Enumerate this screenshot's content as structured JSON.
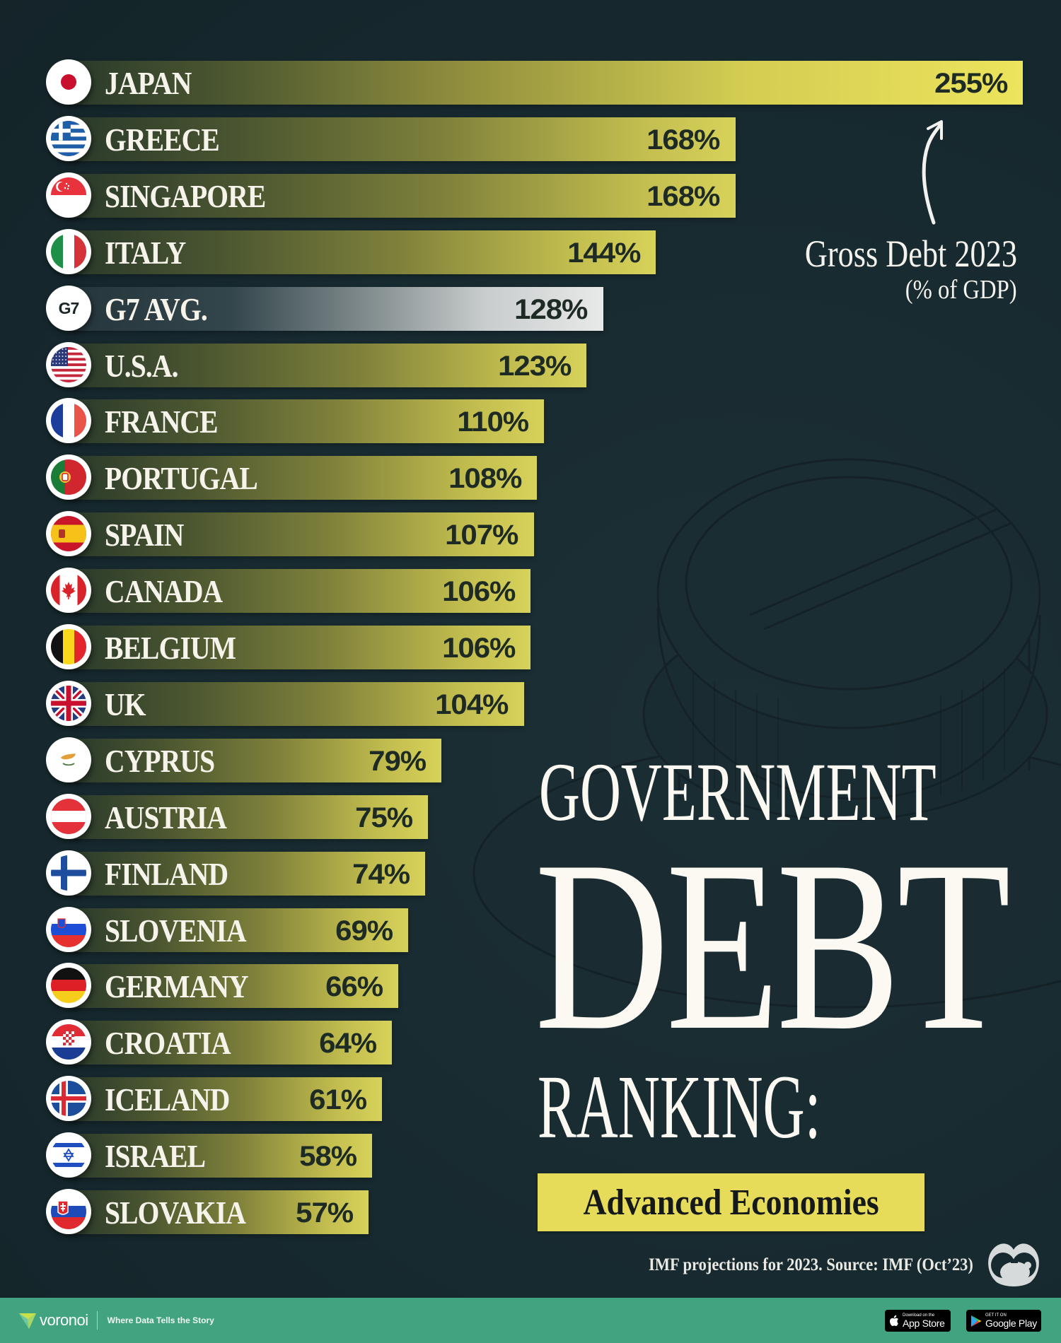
{
  "title": {
    "line1": "GOVERNMENT",
    "line2": "DEBT",
    "line3": "RANKING:",
    "subtitle": "Advanced Economies"
  },
  "annotation": {
    "line1": "Gross Debt 2023",
    "line2": "(% of GDP)"
  },
  "source": "IMF projections for 2023. Source: IMF (Oct’23)",
  "footer": {
    "brand": "voronoi",
    "tagline": "Where Data Tells the Story",
    "app_store_small": "Download on the",
    "app_store_big": "App Store",
    "google_play_small": "GET IT ON",
    "google_play_big": "Google Play"
  },
  "colors": {
    "background": "#172a30",
    "bar_yellow": "#d7d25a",
    "bar_top_yellow": "#ede45c",
    "avg_bar_gray": "#e8e9e9",
    "subtitle_bg": "#e6dc5a",
    "footer_green": "#42a380"
  },
  "rows": [
    {
      "country": "JAPAN",
      "value": "255%",
      "flag": "japan-flag-icon"
    },
    {
      "country": "GREECE",
      "value": "168%",
      "flag": "greece-flag-icon"
    },
    {
      "country": "SINGAPORE",
      "value": "168%",
      "flag": "singapore-flag-icon"
    },
    {
      "country": "ITALY",
      "value": "144%",
      "flag": "italy-flag-icon"
    },
    {
      "country": "G7 AVG.",
      "value": "128%",
      "flag": "g7-icon"
    },
    {
      "country": "U.S.A.",
      "value": "123%",
      "flag": "usa-flag-icon"
    },
    {
      "country": "FRANCE",
      "value": "110%",
      "flag": "france-flag-icon"
    },
    {
      "country": "PORTUGAL",
      "value": "108%",
      "flag": "portugal-flag-icon"
    },
    {
      "country": "SPAIN",
      "value": "107%",
      "flag": "spain-flag-icon"
    },
    {
      "country": "CANADA",
      "value": "106%",
      "flag": "canada-flag-icon"
    },
    {
      "country": "BELGIUM",
      "value": "106%",
      "flag": "belgium-flag-icon"
    },
    {
      "country": "UK",
      "value": "104%",
      "flag": "uk-flag-icon"
    },
    {
      "country": "CYPRUS",
      "value": "79%",
      "flag": "cyprus-flag-icon"
    },
    {
      "country": "AUSTRIA",
      "value": "75%",
      "flag": "austria-flag-icon"
    },
    {
      "country": "FINLAND",
      "value": "74%",
      "flag": "finland-flag-icon"
    },
    {
      "country": "SLOVENIA",
      "value": "69%",
      "flag": "slovenia-flag-icon"
    },
    {
      "country": "GERMANY",
      "value": "66%",
      "flag": "germany-flag-icon"
    },
    {
      "country": "CROATIA",
      "value": "64%",
      "flag": "croatia-flag-icon"
    },
    {
      "country": "ICELAND",
      "value": "61%",
      "flag": "iceland-flag-icon"
    },
    {
      "country": "ISRAEL",
      "value": "58%",
      "flag": "israel-flag-icon"
    },
    {
      "country": "SLOVAKIA",
      "value": "57%",
      "flag": "slovakia-flag-icon"
    }
  ],
  "chart_data": {
    "type": "bar",
    "orientation": "horizontal",
    "title": "Government Debt Ranking: Advanced Economies",
    "subtitle": "Gross Debt 2023 (% of GDP)",
    "xlabel": "",
    "ylabel": "",
    "unit": "% of GDP",
    "grid": false,
    "legend": null,
    "categories": [
      "Japan",
      "Greece",
      "Singapore",
      "Italy",
      "G7 Avg.",
      "U.S.A.",
      "France",
      "Portugal",
      "Spain",
      "Canada",
      "Belgium",
      "UK",
      "Cyprus",
      "Austria",
      "Finland",
      "Slovenia",
      "Germany",
      "Croatia",
      "Iceland",
      "Israel",
      "Slovakia"
    ],
    "values": [
      255,
      168,
      168,
      144,
      128,
      123,
      110,
      108,
      107,
      106,
      106,
      104,
      79,
      75,
      74,
      69,
      66,
      64,
      61,
      58,
      57
    ],
    "highlight": {
      "G7 Avg.": "average reference bar (gray)"
    },
    "annotations": [
      "Gross Debt 2023 (% of GDP)",
      "IMF projections for 2023. Source: IMF (Oct'23)"
    ]
  }
}
